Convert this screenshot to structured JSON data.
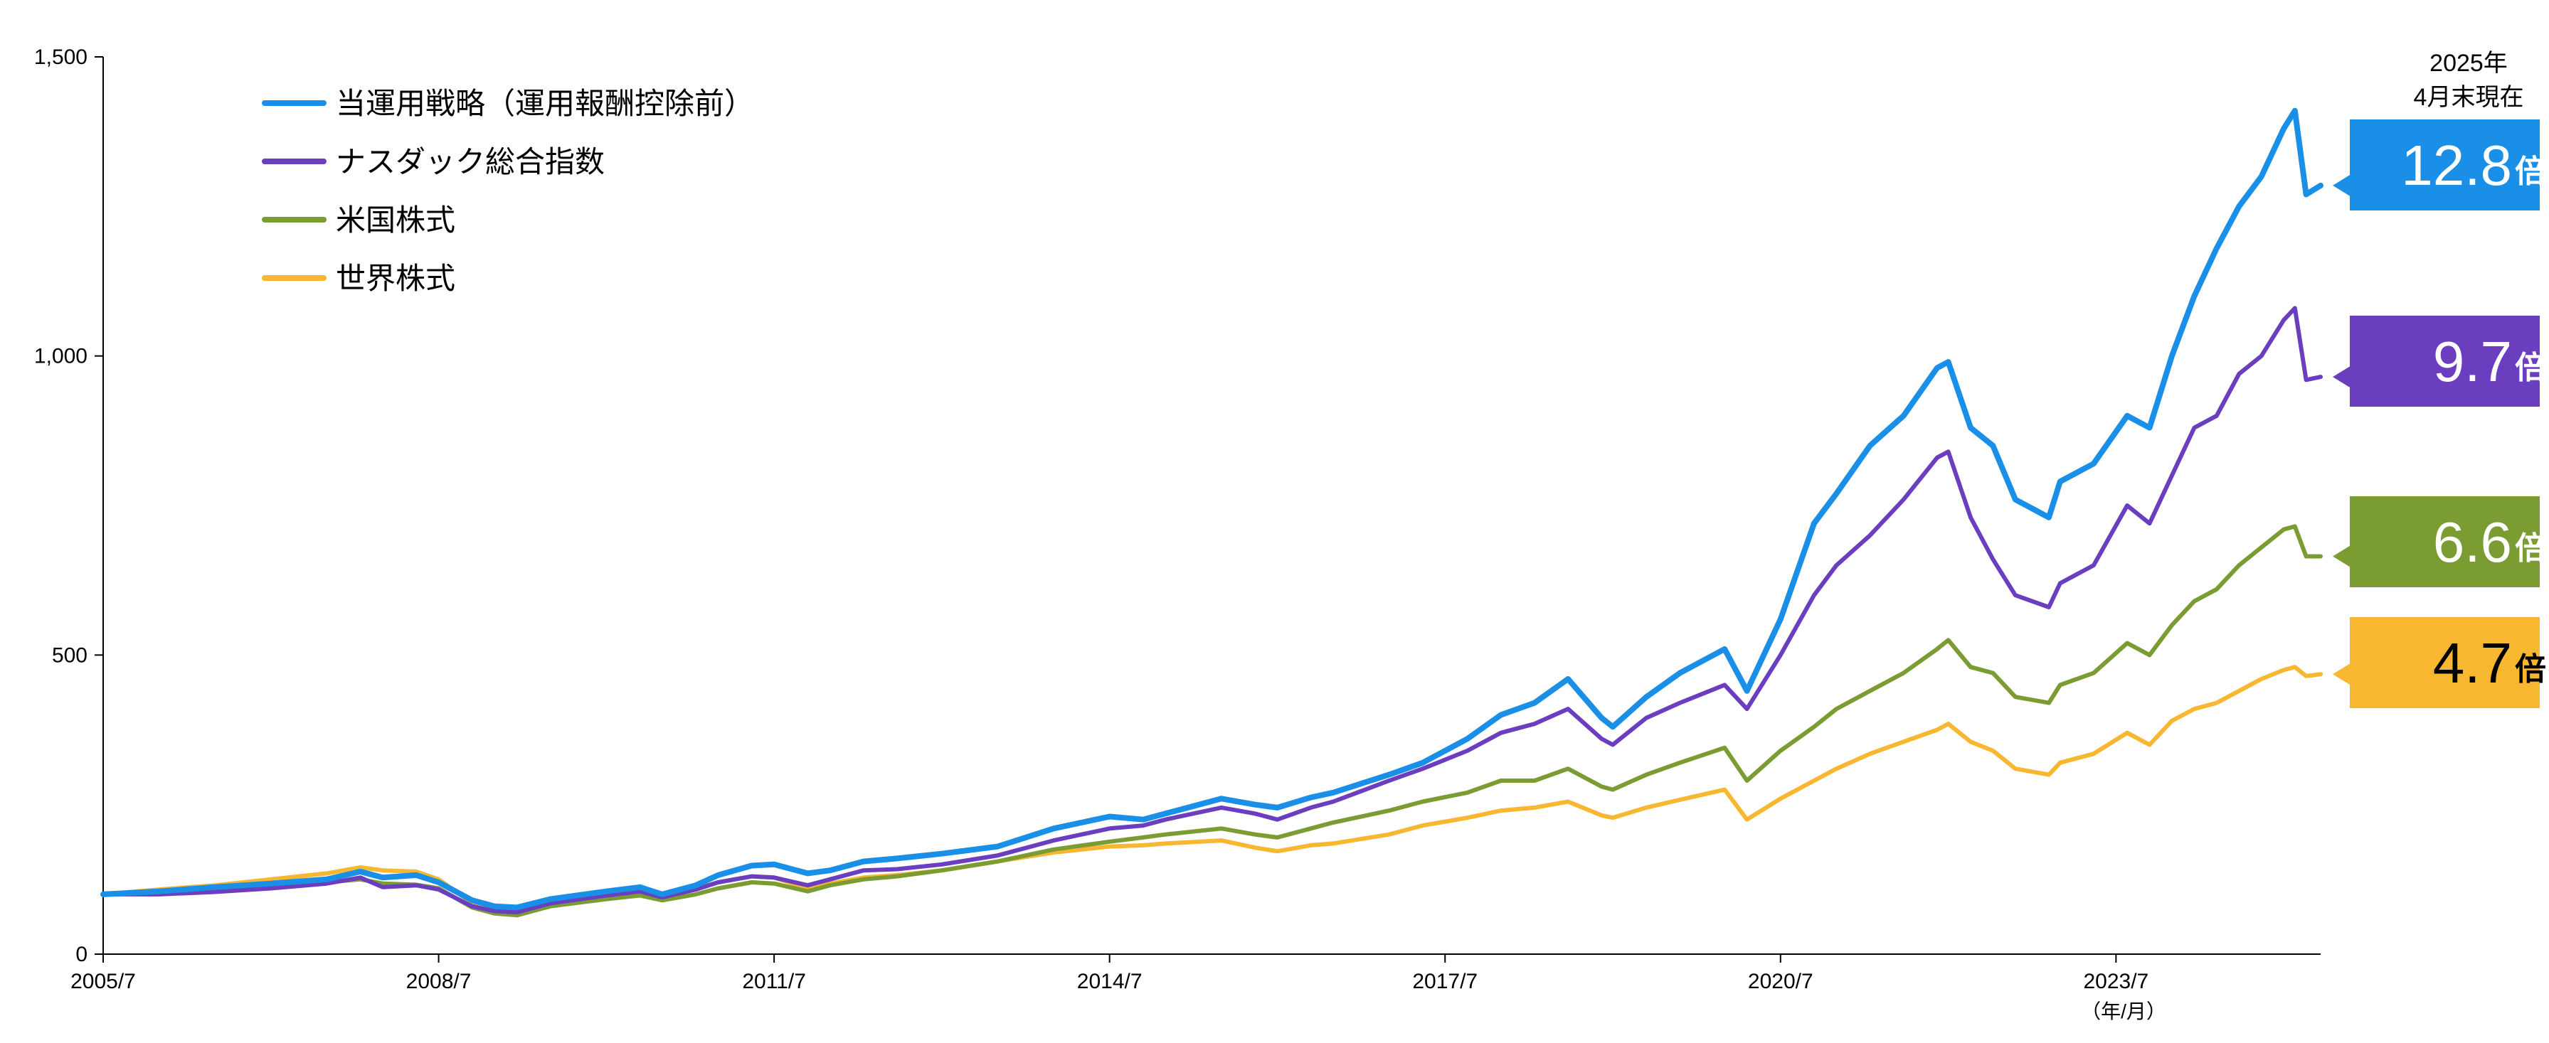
{
  "chart_data": {
    "type": "line",
    "asof_label": [
      "2025年",
      "4月末現在"
    ],
    "x_unit_label": "（年/月）",
    "x_ticks": [
      "2005/7",
      "2008/7",
      "2011/7",
      "2014/7",
      "2017/7",
      "2020/7",
      "2023/7"
    ],
    "x_tick_values": [
      2005.5,
      2008.5,
      2011.5,
      2014.5,
      2017.5,
      2020.5,
      2023.5
    ],
    "xlim": [
      2005.5,
      2025.33
    ],
    "y_ticks": [
      "0",
      "500",
      "1,000",
      "1,500"
    ],
    "y_tick_values": [
      0,
      500,
      1000,
      1500
    ],
    "ylim": [
      0,
      1500
    ],
    "legend_position": "top-left",
    "series": [
      {
        "name": "当運用戦略（運用報酬控除前）",
        "color": "#1A8FE8",
        "badge": {
          "value": "12.8",
          "unit": "倍",
          "bg": "#1A8FE8",
          "text_color": "#FFFFFF"
        },
        "points": [
          [
            2005.5,
            100
          ],
          [
            2006.0,
            105
          ],
          [
            2006.5,
            112
          ],
          [
            2007.0,
            118
          ],
          [
            2007.5,
            125
          ],
          [
            2007.8,
            138
          ],
          [
            2008.0,
            128
          ],
          [
            2008.3,
            132
          ],
          [
            2008.5,
            120
          ],
          [
            2008.8,
            90
          ],
          [
            2009.0,
            80
          ],
          [
            2009.2,
            78
          ],
          [
            2009.5,
            92
          ],
          [
            2010.0,
            105
          ],
          [
            2010.3,
            112
          ],
          [
            2010.5,
            100
          ],
          [
            2010.8,
            115
          ],
          [
            2011.0,
            132
          ],
          [
            2011.3,
            148
          ],
          [
            2011.5,
            150
          ],
          [
            2011.8,
            135
          ],
          [
            2012.0,
            140
          ],
          [
            2012.3,
            155
          ],
          [
            2012.6,
            160
          ],
          [
            2013.0,
            168
          ],
          [
            2013.5,
            180
          ],
          [
            2014.0,
            210
          ],
          [
            2014.5,
            230
          ],
          [
            2014.8,
            225
          ],
          [
            2015.0,
            235
          ],
          [
            2015.5,
            260
          ],
          [
            2015.8,
            250
          ],
          [
            2016.0,
            245
          ],
          [
            2016.3,
            262
          ],
          [
            2016.5,
            270
          ],
          [
            2017.0,
            300
          ],
          [
            2017.3,
            320
          ],
          [
            2017.7,
            360
          ],
          [
            2018.0,
            400
          ],
          [
            2018.3,
            420
          ],
          [
            2018.6,
            460
          ],
          [
            2018.9,
            395
          ],
          [
            2019.0,
            380
          ],
          [
            2019.3,
            430
          ],
          [
            2019.6,
            470
          ],
          [
            2020.0,
            510
          ],
          [
            2020.2,
            440
          ],
          [
            2020.5,
            560
          ],
          [
            2020.8,
            720
          ],
          [
            2021.0,
            770
          ],
          [
            2021.3,
            850
          ],
          [
            2021.6,
            900
          ],
          [
            2021.9,
            980
          ],
          [
            2022.0,
            990
          ],
          [
            2022.2,
            880
          ],
          [
            2022.4,
            850
          ],
          [
            2022.6,
            760
          ],
          [
            2022.9,
            730
          ],
          [
            2023.0,
            790
          ],
          [
            2023.3,
            820
          ],
          [
            2023.6,
            900
          ],
          [
            2023.8,
            880
          ],
          [
            2024.0,
            1000
          ],
          [
            2024.2,
            1100
          ],
          [
            2024.4,
            1180
          ],
          [
            2024.6,
            1250
          ],
          [
            2024.8,
            1300
          ],
          [
            2025.0,
            1380
          ],
          [
            2025.1,
            1410
          ],
          [
            2025.2,
            1270
          ],
          [
            2025.33,
            1285
          ]
        ]
      },
      {
        "name": "ナスダック総合指数",
        "color": "#6A3EBF",
        "badge": {
          "value": "9.7",
          "unit": "倍",
          "bg": "#6A3EBF",
          "text_color": "#FFFFFF"
        },
        "points": [
          [
            2005.5,
            100
          ],
          [
            2006.0,
            100
          ],
          [
            2006.5,
            104
          ],
          [
            2007.0,
            110
          ],
          [
            2007.5,
            118
          ],
          [
            2007.8,
            128
          ],
          [
            2008.0,
            112
          ],
          [
            2008.3,
            115
          ],
          [
            2008.5,
            108
          ],
          [
            2008.8,
            80
          ],
          [
            2009.0,
            72
          ],
          [
            2009.2,
            70
          ],
          [
            2009.5,
            85
          ],
          [
            2010.0,
            98
          ],
          [
            2010.3,
            105
          ],
          [
            2010.5,
            95
          ],
          [
            2010.8,
            108
          ],
          [
            2011.0,
            120
          ],
          [
            2011.3,
            130
          ],
          [
            2011.5,
            128
          ],
          [
            2011.8,
            115
          ],
          [
            2012.0,
            125
          ],
          [
            2012.3,
            140
          ],
          [
            2012.6,
            142
          ],
          [
            2013.0,
            150
          ],
          [
            2013.5,
            165
          ],
          [
            2014.0,
            190
          ],
          [
            2014.5,
            210
          ],
          [
            2014.8,
            215
          ],
          [
            2015.0,
            225
          ],
          [
            2015.5,
            245
          ],
          [
            2015.8,
            235
          ],
          [
            2016.0,
            225
          ],
          [
            2016.3,
            245
          ],
          [
            2016.5,
            255
          ],
          [
            2017.0,
            290
          ],
          [
            2017.3,
            310
          ],
          [
            2017.7,
            340
          ],
          [
            2018.0,
            370
          ],
          [
            2018.3,
            385
          ],
          [
            2018.6,
            410
          ],
          [
            2018.9,
            360
          ],
          [
            2019.0,
            350
          ],
          [
            2019.3,
            395
          ],
          [
            2019.6,
            420
          ],
          [
            2020.0,
            450
          ],
          [
            2020.2,
            410
          ],
          [
            2020.5,
            500
          ],
          [
            2020.8,
            600
          ],
          [
            2021.0,
            650
          ],
          [
            2021.3,
            700
          ],
          [
            2021.6,
            760
          ],
          [
            2021.9,
            830
          ],
          [
            2022.0,
            840
          ],
          [
            2022.2,
            730
          ],
          [
            2022.4,
            660
          ],
          [
            2022.6,
            600
          ],
          [
            2022.9,
            580
          ],
          [
            2023.0,
            620
          ],
          [
            2023.3,
            650
          ],
          [
            2023.6,
            750
          ],
          [
            2023.8,
            720
          ],
          [
            2024.0,
            800
          ],
          [
            2024.2,
            880
          ],
          [
            2024.4,
            900
          ],
          [
            2024.6,
            970
          ],
          [
            2024.8,
            1000
          ],
          [
            2025.0,
            1060
          ],
          [
            2025.1,
            1080
          ],
          [
            2025.2,
            960
          ],
          [
            2025.33,
            965
          ]
        ]
      },
      {
        "name": "米国株式",
        "color": "#7A9C32",
        "badge": {
          "value": "6.6",
          "unit": "倍",
          "bg": "#7A9C32",
          "text_color": "#FFFFFF"
        },
        "points": [
          [
            2005.5,
            100
          ],
          [
            2006.0,
            103
          ],
          [
            2006.5,
            108
          ],
          [
            2007.0,
            115
          ],
          [
            2007.5,
            120
          ],
          [
            2007.8,
            125
          ],
          [
            2008.0,
            118
          ],
          [
            2008.3,
            116
          ],
          [
            2008.5,
            110
          ],
          [
            2008.8,
            78
          ],
          [
            2009.0,
            68
          ],
          [
            2009.2,
            65
          ],
          [
            2009.5,
            80
          ],
          [
            2010.0,
            92
          ],
          [
            2010.3,
            98
          ],
          [
            2010.5,
            90
          ],
          [
            2010.8,
            100
          ],
          [
            2011.0,
            110
          ],
          [
            2011.3,
            120
          ],
          [
            2011.5,
            118
          ],
          [
            2011.8,
            105
          ],
          [
            2012.0,
            115
          ],
          [
            2012.3,
            125
          ],
          [
            2012.6,
            130
          ],
          [
            2013.0,
            140
          ],
          [
            2013.5,
            155
          ],
          [
            2014.0,
            175
          ],
          [
            2014.5,
            188
          ],
          [
            2014.8,
            195
          ],
          [
            2015.0,
            200
          ],
          [
            2015.5,
            210
          ],
          [
            2015.8,
            200
          ],
          [
            2016.0,
            195
          ],
          [
            2016.3,
            210
          ],
          [
            2016.5,
            220
          ],
          [
            2017.0,
            240
          ],
          [
            2017.3,
            255
          ],
          [
            2017.7,
            270
          ],
          [
            2018.0,
            290
          ],
          [
            2018.3,
            290
          ],
          [
            2018.6,
            310
          ],
          [
            2018.9,
            280
          ],
          [
            2019.0,
            275
          ],
          [
            2019.3,
            300
          ],
          [
            2019.6,
            320
          ],
          [
            2020.0,
            345
          ],
          [
            2020.2,
            290
          ],
          [
            2020.5,
            340
          ],
          [
            2020.8,
            380
          ],
          [
            2021.0,
            410
          ],
          [
            2021.3,
            440
          ],
          [
            2021.6,
            470
          ],
          [
            2021.9,
            510
          ],
          [
            2022.0,
            525
          ],
          [
            2022.2,
            480
          ],
          [
            2022.4,
            470
          ],
          [
            2022.6,
            430
          ],
          [
            2022.9,
            420
          ],
          [
            2023.0,
            450
          ],
          [
            2023.3,
            470
          ],
          [
            2023.6,
            520
          ],
          [
            2023.8,
            500
          ],
          [
            2024.0,
            550
          ],
          [
            2024.2,
            590
          ],
          [
            2024.4,
            610
          ],
          [
            2024.6,
            650
          ],
          [
            2024.8,
            680
          ],
          [
            2025.0,
            710
          ],
          [
            2025.1,
            715
          ],
          [
            2025.2,
            665
          ],
          [
            2025.33,
            665
          ]
        ]
      },
      {
        "name": "世界株式",
        "color": "#F7B731",
        "badge": {
          "value": "4.7",
          "unit": "倍",
          "bg": "#F7B731",
          "text_color": "#000000"
        },
        "points": [
          [
            2005.5,
            100
          ],
          [
            2006.0,
            108
          ],
          [
            2006.5,
            115
          ],
          [
            2007.0,
            125
          ],
          [
            2007.5,
            135
          ],
          [
            2007.8,
            145
          ],
          [
            2008.0,
            140
          ],
          [
            2008.3,
            138
          ],
          [
            2008.5,
            125
          ],
          [
            2008.8,
            85
          ],
          [
            2009.0,
            75
          ],
          [
            2009.2,
            72
          ],
          [
            2009.5,
            90
          ],
          [
            2010.0,
            102
          ],
          [
            2010.3,
            108
          ],
          [
            2010.5,
            98
          ],
          [
            2010.8,
            110
          ],
          [
            2011.0,
            120
          ],
          [
            2011.3,
            130
          ],
          [
            2011.5,
            128
          ],
          [
            2011.8,
            110
          ],
          [
            2012.0,
            118
          ],
          [
            2012.3,
            128
          ],
          [
            2012.6,
            132
          ],
          [
            2013.0,
            140
          ],
          [
            2013.5,
            155
          ],
          [
            2014.0,
            170
          ],
          [
            2014.5,
            180
          ],
          [
            2014.8,
            182
          ],
          [
            2015.0,
            185
          ],
          [
            2015.5,
            190
          ],
          [
            2015.8,
            178
          ],
          [
            2016.0,
            172
          ],
          [
            2016.3,
            182
          ],
          [
            2016.5,
            185
          ],
          [
            2017.0,
            200
          ],
          [
            2017.3,
            215
          ],
          [
            2017.7,
            228
          ],
          [
            2018.0,
            240
          ],
          [
            2018.3,
            245
          ],
          [
            2018.6,
            255
          ],
          [
            2018.9,
            232
          ],
          [
            2019.0,
            228
          ],
          [
            2019.3,
            245
          ],
          [
            2019.6,
            258
          ],
          [
            2020.0,
            275
          ],
          [
            2020.2,
            225
          ],
          [
            2020.5,
            260
          ],
          [
            2020.8,
            290
          ],
          [
            2021.0,
            310
          ],
          [
            2021.3,
            335
          ],
          [
            2021.6,
            355
          ],
          [
            2021.9,
            375
          ],
          [
            2022.0,
            385
          ],
          [
            2022.2,
            355
          ],
          [
            2022.4,
            340
          ],
          [
            2022.6,
            310
          ],
          [
            2022.9,
            300
          ],
          [
            2023.0,
            320
          ],
          [
            2023.3,
            335
          ],
          [
            2023.6,
            370
          ],
          [
            2023.8,
            350
          ],
          [
            2024.0,
            390
          ],
          [
            2024.2,
            410
          ],
          [
            2024.4,
            420
          ],
          [
            2024.6,
            440
          ],
          [
            2024.8,
            460
          ],
          [
            2025.0,
            475
          ],
          [
            2025.1,
            480
          ],
          [
            2025.2,
            465
          ],
          [
            2025.33,
            468
          ]
        ]
      }
    ]
  }
}
